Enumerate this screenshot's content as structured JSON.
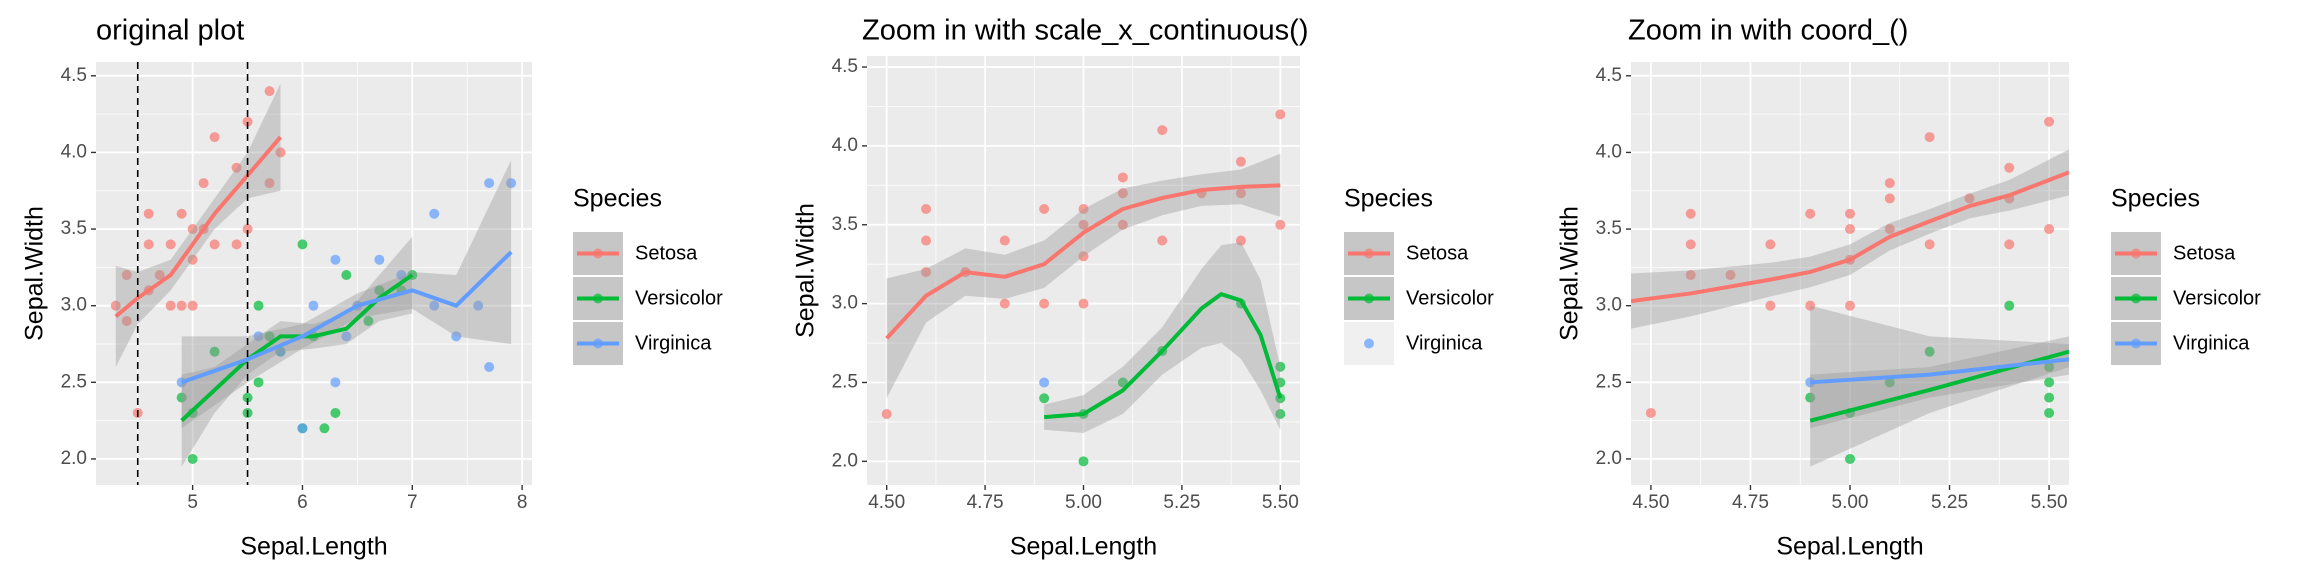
{
  "chart_data": [
    {
      "type": "scatter",
      "title": "original plot",
      "xlabel": "Sepal.Length",
      "ylabel": "Sepal.Width",
      "xlim": [
        4.12,
        8.09
      ],
      "ylim": [
        1.83,
        4.59
      ],
      "xticks": [
        5,
        6,
        7,
        8
      ],
      "yticks": [
        {
          "value": 2,
          "label": "2.0"
        },
        2.5,
        {
          "value": 3,
          "label": "3.0"
        },
        3.5,
        {
          "value": 4,
          "label": "4.0"
        },
        4.5
      ],
      "vlines": [
        4.5,
        5.5
      ],
      "legend_title": "Species",
      "series": [
        {
          "name": "Setosa",
          "color": "#F8766D",
          "x": [
            4.3,
            4.4,
            4.4,
            4.5,
            4.6,
            4.6,
            4.6,
            4.7,
            4.8,
            4.8,
            4.9,
            4.9,
            5.0,
            5.0,
            5.0,
            5.1,
            5.1,
            5.2,
            5.2,
            5.4,
            5.4,
            5.5,
            5.5,
            5.7,
            5.7,
            5.8
          ],
          "y": [
            3.0,
            2.9,
            3.2,
            2.3,
            3.1,
            3.4,
            3.6,
            3.2,
            3.0,
            3.4,
            3.0,
            3.6,
            3.0,
            3.3,
            3.5,
            3.5,
            3.8,
            3.4,
            4.1,
            3.9,
            3.4,
            3.5,
            4.2,
            3.8,
            4.4,
            4.0
          ],
          "smooth": {
            "x": [
              4.3,
              4.5,
              4.8,
              5.0,
              5.2,
              5.5,
              5.8
            ],
            "y": [
              2.93,
              3.05,
              3.2,
              3.4,
              3.6,
              3.85,
              4.1
            ],
            "lower": [
              2.6,
              2.88,
              3.1,
              3.3,
              3.5,
              3.7,
              3.75
            ],
            "upper": [
              3.26,
              3.22,
              3.3,
              3.5,
              3.7,
              4.0,
              4.45
            ]
          }
        },
        {
          "name": "Versicolor",
          "color": "#00BA38",
          "x": [
            4.9,
            5.0,
            5.0,
            5.2,
            5.5,
            5.5,
            5.6,
            5.6,
            5.7,
            5.8,
            6.0,
            6.0,
            6.1,
            6.2,
            6.3,
            6.4,
            6.6,
            6.7,
            6.9,
            7.0
          ],
          "y": [
            2.4,
            2.0,
            2.3,
            2.7,
            2.3,
            2.4,
            2.5,
            3.0,
            2.8,
            2.7,
            2.2,
            3.4,
            2.8,
            2.2,
            2.3,
            3.2,
            2.9,
            3.1,
            3.1,
            3.2
          ],
          "smooth": {
            "x": [
              4.9,
              5.2,
              5.5,
              5.8,
              6.1,
              6.4,
              6.7,
              7.0
            ],
            "y": [
              2.25,
              2.45,
              2.65,
              2.8,
              2.8,
              2.85,
              3.05,
              3.2
            ],
            "lower": [
              1.95,
              2.3,
              2.55,
              2.7,
              2.72,
              2.75,
              2.9,
              2.95
            ],
            "upper": [
              2.55,
              2.6,
              2.75,
              2.9,
              2.88,
              2.95,
              3.2,
              3.45
            ]
          }
        },
        {
          "name": "Virginica",
          "color": "#619CFF",
          "x": [
            4.9,
            5.6,
            5.8,
            6.0,
            6.1,
            6.3,
            6.3,
            6.4,
            6.5,
            6.7,
            6.9,
            7.2,
            7.2,
            7.4,
            7.6,
            7.7,
            7.7,
            7.9
          ],
          "y": [
            2.5,
            2.8,
            2.7,
            2.2,
            3.0,
            2.5,
            3.3,
            2.8,
            3.0,
            3.3,
            3.2,
            3.6,
            3.0,
            2.8,
            3.0,
            2.6,
            3.8,
            3.8
          ],
          "smooth": {
            "x": [
              4.9,
              5.5,
              6.0,
              6.5,
              7.0,
              7.4,
              7.9
            ],
            "y": [
              2.5,
              2.65,
              2.8,
              3.0,
              3.1,
              3.0,
              3.35
            ],
            "lower": [
              2.2,
              2.5,
              2.72,
              2.92,
              2.98,
              2.8,
              2.75
            ],
            "upper": [
              2.8,
              2.8,
              2.88,
              3.08,
              3.22,
              3.2,
              3.95
            ]
          }
        }
      ]
    },
    {
      "type": "scatter",
      "title": "Zoom in with scale_x_continuous()",
      "xlabel": "Sepal.Length",
      "ylabel": "Sepal.Width",
      "xlim": [
        4.45,
        5.55
      ],
      "ylim": [
        1.85,
        4.57
      ],
      "xticks": [
        {
          "value": 4.5,
          "label": "4.50"
        },
        4.75,
        {
          "value": 5,
          "label": "5.00"
        },
        5.25,
        {
          "value": 5.5,
          "label": "5.50"
        }
      ],
      "yticks": [
        {
          "value": 2,
          "label": "2.0"
        },
        2.5,
        {
          "value": 3,
          "label": "3.0"
        },
        3.5,
        {
          "value": 4,
          "label": "4.0"
        },
        4.5
      ],
      "legend_title": "Species",
      "series": [
        {
          "name": "Setosa",
          "color": "#F8766D",
          "x": [
            4.5,
            4.6,
            4.6,
            4.6,
            4.7,
            4.8,
            4.8,
            4.9,
            4.9,
            5.0,
            5.0,
            5.0,
            5.0,
            5.1,
            5.1,
            5.1,
            5.2,
            5.2,
            5.3,
            5.4,
            5.4,
            5.4,
            5.5,
            5.5
          ],
          "y": [
            2.3,
            3.2,
            3.4,
            3.6,
            3.2,
            3.0,
            3.4,
            3.0,
            3.6,
            3.0,
            3.3,
            3.5,
            3.6,
            3.5,
            3.7,
            3.8,
            3.4,
            4.1,
            3.7,
            3.4,
            3.7,
            3.9,
            3.5,
            4.2
          ],
          "smooth": {
            "x": [
              4.5,
              4.6,
              4.7,
              4.8,
              4.9,
              5.0,
              5.1,
              5.2,
              5.3,
              5.4,
              5.5
            ],
            "y": [
              2.78,
              3.05,
              3.2,
              3.17,
              3.25,
              3.45,
              3.6,
              3.67,
              3.72,
              3.74,
              3.75
            ],
            "lower": [
              2.4,
              2.88,
              3.05,
              3.03,
              3.1,
              3.3,
              3.47,
              3.56,
              3.62,
              3.63,
              3.55
            ],
            "upper": [
              3.16,
              3.22,
              3.35,
              3.31,
              3.4,
              3.6,
              3.73,
              3.78,
              3.82,
              3.85,
              3.95
            ]
          }
        },
        {
          "name": "Versicolor",
          "color": "#00BA38",
          "x": [
            4.9,
            5.0,
            5.0,
            5.1,
            5.2,
            5.4,
            5.5,
            5.5,
            5.5,
            5.5
          ],
          "y": [
            2.4,
            2.0,
            2.3,
            2.5,
            2.7,
            3.0,
            2.3,
            2.4,
            2.5,
            2.6
          ],
          "smooth": {
            "x": [
              4.9,
              5.0,
              5.1,
              5.2,
              5.3,
              5.35,
              5.4,
              5.45,
              5.5
            ],
            "y": [
              2.28,
              2.3,
              2.45,
              2.7,
              2.97,
              3.06,
              3.02,
              2.8,
              2.4
            ],
            "lower": [
              2.2,
              2.18,
              2.3,
              2.55,
              2.72,
              2.75,
              2.65,
              2.45,
              2.2
            ],
            "upper": [
              2.36,
              2.42,
              2.6,
              2.85,
              3.22,
              3.37,
              3.39,
              3.15,
              2.6
            ]
          }
        },
        {
          "name": "Virginica",
          "color": "#619CFF",
          "x": [
            4.9
          ],
          "y": [
            2.5
          ]
        }
      ]
    },
    {
      "type": "scatter",
      "title": "Zoom in with coord_()",
      "xlabel": "Sepal.Length",
      "ylabel": "Sepal.Width",
      "xlim": [
        4.45,
        5.55
      ],
      "ylim": [
        1.83,
        4.59
      ],
      "xticks": [
        {
          "value": 4.5,
          "label": "4.50"
        },
        4.75,
        {
          "value": 5,
          "label": "5.00"
        },
        5.25,
        {
          "value": 5.5,
          "label": "5.50"
        }
      ],
      "yticks": [
        {
          "value": 2,
          "label": "2.0"
        },
        2.5,
        {
          "value": 3,
          "label": "3.0"
        },
        3.5,
        {
          "value": 4,
          "label": "4.0"
        },
        4.5
      ],
      "legend_title": "Species",
      "series": [
        {
          "name": "Setosa",
          "color": "#F8766D",
          "x": [
            4.5,
            4.6,
            4.6,
            4.6,
            4.7,
            4.8,
            4.8,
            4.9,
            4.9,
            5.0,
            5.0,
            5.0,
            5.0,
            5.1,
            5.1,
            5.1,
            5.2,
            5.2,
            5.3,
            5.4,
            5.4,
            5.4,
            5.5,
            5.5
          ],
          "y": [
            2.3,
            3.2,
            3.4,
            3.6,
            3.2,
            3.0,
            3.4,
            3.0,
            3.6,
            3.0,
            3.3,
            3.5,
            3.6,
            3.5,
            3.7,
            3.8,
            3.4,
            4.1,
            3.7,
            3.4,
            3.7,
            3.9,
            3.5,
            4.2
          ],
          "smooth": {
            "x": [
              4.45,
              4.6,
              4.8,
              4.9,
              5.0,
              5.1,
              5.2,
              5.3,
              5.4,
              5.55
            ],
            "y": [
              3.03,
              3.08,
              3.17,
              3.22,
              3.3,
              3.45,
              3.55,
              3.65,
              3.72,
              3.87
            ],
            "lower": [
              2.85,
              2.93,
              3.06,
              3.12,
              3.2,
              3.36,
              3.47,
              3.57,
              3.62,
              3.72
            ],
            "upper": [
              3.21,
              3.23,
              3.28,
              3.32,
              3.4,
              3.54,
              3.63,
              3.73,
              3.82,
              4.02
            ]
          }
        },
        {
          "name": "Versicolor",
          "color": "#00BA38",
          "x": [
            4.9,
            5.0,
            5.0,
            5.1,
            5.2,
            5.4,
            5.5,
            5.5,
            5.5,
            5.5
          ],
          "y": [
            2.4,
            2.0,
            2.3,
            2.5,
            2.7,
            3.0,
            2.3,
            2.4,
            2.5,
            2.6
          ],
          "smooth": {
            "x": [
              4.9,
              5.2,
              5.55
            ],
            "y": [
              2.25,
              2.45,
              2.7
            ],
            "lower": [
              1.95,
              2.3,
              2.6
            ],
            "upper": [
              2.55,
              2.6,
              2.8
            ]
          }
        },
        {
          "name": "Virginica",
          "color": "#619CFF",
          "x": [
            4.9
          ],
          "y": [
            2.5
          ],
          "smooth": {
            "x": [
              4.9,
              5.2,
              5.55
            ],
            "y": [
              2.5,
              2.55,
              2.65
            ],
            "lower": [
              2.2,
              2.4,
              2.55
            ],
            "upper": [
              3.0,
              2.8,
              2.75
            ]
          }
        }
      ]
    }
  ]
}
